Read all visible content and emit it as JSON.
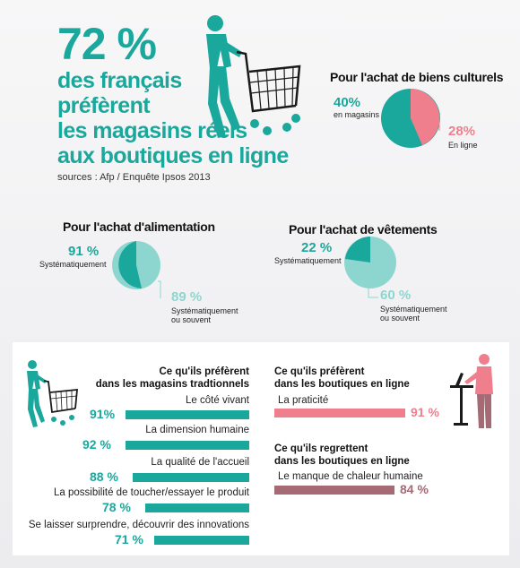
{
  "header": {
    "big_percent": "72 %",
    "headline_lines": [
      "des français",
      "préfèrent",
      "les magasins réels",
      "aux boutiques en ligne"
    ],
    "source": "sources : Afp / Enquête Ipsos 2013"
  },
  "pies": {
    "culture": {
      "title": "Pour l'achat de biens culturels",
      "a_value": "40%",
      "a_label": "en magasins",
      "b_value": "28%",
      "b_label": "En ligne"
    },
    "food": {
      "title": "Pour l'achat d'alimentation",
      "a_value": "91 %",
      "a_label": "Systématiquement",
      "b_value": "89 %",
      "b_label_1": "Systématiquement",
      "b_label_2": "ou souvent"
    },
    "clothes": {
      "title": "Pour l'achat de vêtements",
      "a_value": "22 %",
      "a_label": "Systématiquement",
      "b_value": "60 %",
      "b_label_1": "Systématiquement",
      "b_label_2": "ou souvent"
    }
  },
  "chart_data": [
    {
      "type": "pie",
      "title": "Pour l'achat de biens culturels",
      "categories": [
        "en magasins",
        "En ligne"
      ],
      "values": [
        40,
        28
      ]
    },
    {
      "type": "pie",
      "title": "Pour l'achat d'alimentation",
      "categories": [
        "Systématiquement",
        "Systématiquement ou souvent"
      ],
      "values": [
        91,
        89
      ]
    },
    {
      "type": "pie",
      "title": "Pour l'achat de vêtements",
      "categories": [
        "Systématiquement",
        "Systématiquement ou souvent"
      ],
      "values": [
        22,
        60
      ]
    },
    {
      "type": "bar",
      "title": "Ce qu'ils préfèrent dans les magasins tradtionnels",
      "categories": [
        "Le côté vivant",
        "La dimension humaine",
        "La qualité de l'accueil",
        "La possibilité de toucher/essayer le produit",
        "Se laisser surprendre, découvrir des innovations"
      ],
      "values": [
        91,
        92,
        88,
        78,
        71
      ]
    },
    {
      "type": "bar",
      "title": "Ce qu'ils préfèrent dans les boutiques en ligne",
      "categories": [
        "La praticité"
      ],
      "values": [
        91
      ]
    },
    {
      "type": "bar",
      "title": "Ce qu'ils regrettent dans les boutiques en ligne",
      "categories": [
        "Le manque de chaleur humaine"
      ],
      "values": [
        84
      ]
    }
  ],
  "stores": {
    "title_1": "Ce qu'ils préfèrent",
    "title_2": "dans les magasins tradtionnels",
    "items": [
      {
        "label": "Le côté vivant",
        "value": "91%"
      },
      {
        "label": "La dimension humaine",
        "value": "92 %"
      },
      {
        "label": "La qualité de l'accueil",
        "value": "88 %"
      },
      {
        "label": "La possibilité de toucher/essayer le produit",
        "value": "78 %"
      },
      {
        "label": "Se laisser surprendre, découvrir des innovations",
        "value": "71 %"
      }
    ]
  },
  "online_pref": {
    "title_1": "Ce qu'ils préfèrent",
    "title_2": "dans  les boutiques en ligne",
    "item_label": "La praticité",
    "item_value": "91 %"
  },
  "online_regret": {
    "title_1": "Ce qu'ils regrettent",
    "title_2": "dans les boutiques en ligne",
    "item_label": "Le manque de chaleur humaine",
    "item_value": "84 %"
  },
  "colors": {
    "teal": "#1aa79c",
    "light_teal": "#8dd6cf",
    "pink": "#ef7f8c",
    "mauve": "#a66a75"
  }
}
